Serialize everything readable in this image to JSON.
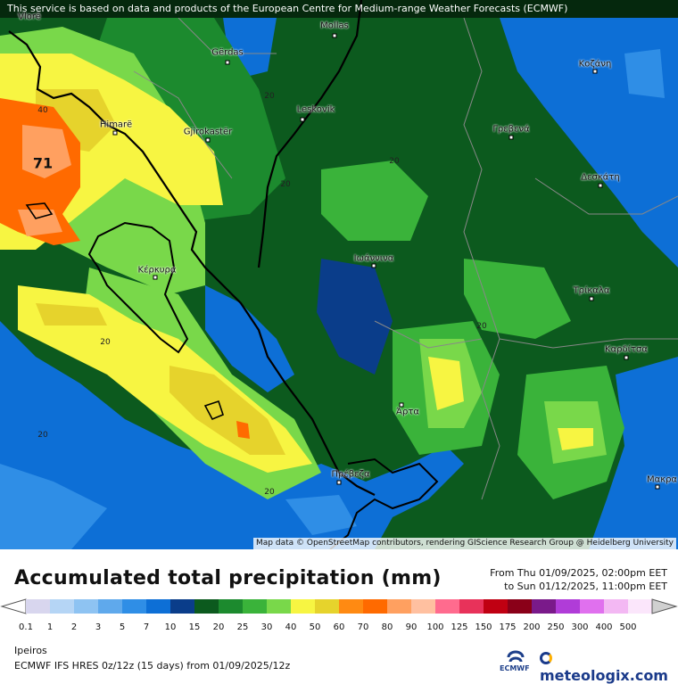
{
  "banner": "This service is based on data and products of the European Centre for Medium-range Weather Forecasts (ECMWF)",
  "attribution": "Map data © OpenStreetMap contributors, rendering GIScience Research Group @ Heidelberg University",
  "title": "Accumulated total precipitation (mm)",
  "range_from": "From Thu 01/09/2025, 02:00pm EET",
  "range_to": "to Sun 01/12/2025, 11:00pm EET",
  "region": "Ipeiros",
  "model": "ECMWF IFS HRES 0z/12z (15 days) from 01/09/2025/12z",
  "brand": "meteologix.com",
  "ecmwf_logo": "ECMWF",
  "max_value": "71",
  "places": [
    {
      "name": "Vlorë",
      "id": "vlore"
    },
    {
      "name": "Mollas",
      "id": "mollas"
    },
    {
      "name": "Gërdas",
      "id": "gerdas"
    },
    {
      "name": "Leskovik",
      "id": "leskovik"
    },
    {
      "name": "Himarë",
      "id": "himare"
    },
    {
      "name": "Gjirokastër",
      "id": "gjirokaster"
    },
    {
      "name": "Κοζάνη",
      "id": "kozani"
    },
    {
      "name": "Γρεβενά",
      "id": "grevena"
    },
    {
      "name": "Δεσκάτη",
      "id": "deskati"
    },
    {
      "name": "Ιωάννινα",
      "id": "ioannina"
    },
    {
      "name": "Κέρκυρα",
      "id": "kerkyra"
    },
    {
      "name": "Τρίκαλα",
      "id": "trikala"
    },
    {
      "name": "Καρδίτσα",
      "id": "karditsa"
    },
    {
      "name": "Άρτα",
      "id": "arta"
    },
    {
      "name": "Πρέβεζα",
      "id": "preveza"
    },
    {
      "name": "Μακρα",
      "id": "makra"
    }
  ],
  "contour_labels": [
    "40",
    "20",
    "20",
    "20",
    "20",
    "20",
    "20",
    "20"
  ],
  "legend": {
    "labels": [
      "0.1",
      "1",
      "2",
      "3",
      "5",
      "7",
      "10",
      "15",
      "20",
      "25",
      "30",
      "40",
      "50",
      "60",
      "70",
      "80",
      "90",
      "100",
      "125",
      "150",
      "175",
      "200",
      "250",
      "300",
      "400",
      "500"
    ],
    "colors": [
      "#d8d6ee",
      "#b5d5f5",
      "#8ec3f2",
      "#5fa9ec",
      "#2f8ee6",
      "#0d6fd6",
      "#0a3d8a",
      "#0c5a1e",
      "#1c8a2e",
      "#3ab33a",
      "#79d84a",
      "#f7f542",
      "#e6d32c",
      "#ff8a12",
      "#ff6a00",
      "#ffa060",
      "#ffc0a0",
      "#ff6b8e",
      "#e8325a",
      "#c00012",
      "#8a0018",
      "#7a1a8a",
      "#b03cd8",
      "#e070ee",
      "#f3b8f3",
      "#fbe6fb"
    ],
    "extra": "#d0d0d0"
  }
}
